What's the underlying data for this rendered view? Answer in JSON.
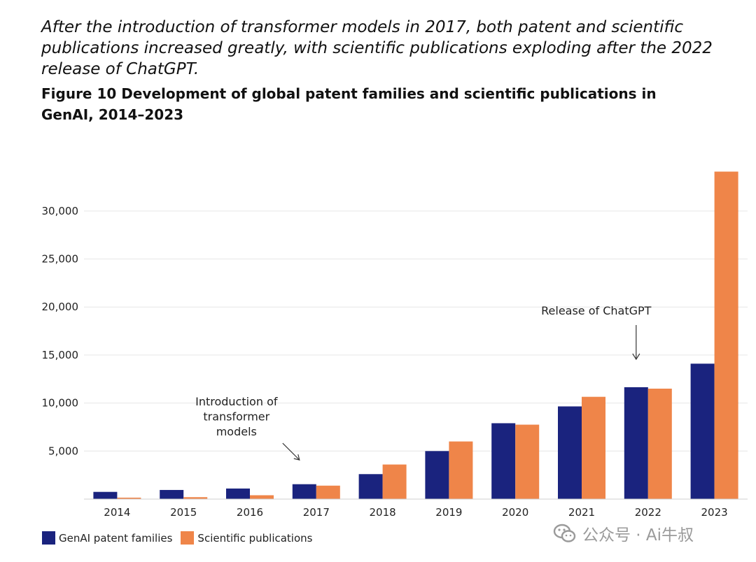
{
  "headline": "After the introduction of transformer models in 2017, both patent and scientific publications increased greatly, with scientific publications exploding after the 2022 release of ChatGPT.",
  "figure_title": "Figure 10 Development of global patent families and scientific publications in GenAI, 2014–2023",
  "watermark": "公众号 · Ai牛叔",
  "colors": {
    "patent": "#1a237e",
    "publications": "#ef8549",
    "grid": "#e6e6e6"
  },
  "chart_data": {
    "type": "bar",
    "title": "Figure 10 Development of global patent families and scientific publications in GenAI, 2014–2023",
    "xlabel": "",
    "ylabel": "",
    "categories": [
      "2014",
      "2015",
      "2016",
      "2017",
      "2018",
      "2019",
      "2020",
      "2021",
      "2022",
      "2023"
    ],
    "series": [
      {
        "name": "GenAI patent families",
        "values": [
          750,
          950,
          1100,
          1550,
          2600,
          5000,
          7900,
          9650,
          11650,
          14100
        ]
      },
      {
        "name": "Scientific publications",
        "values": [
          150,
          200,
          400,
          1400,
          3600,
          6000,
          7750,
          10650,
          11500,
          34100
        ]
      }
    ],
    "ylim": [
      0,
      34500
    ],
    "yticks": [
      5000,
      10000,
      15000,
      20000,
      25000,
      30000
    ],
    "ytick_labels": [
      "5,000",
      "10,000",
      "15,000",
      "20,000",
      "25,000",
      "30,000"
    ],
    "grid": true,
    "legend_position": "bottom-left",
    "annotations": [
      {
        "category": "2017",
        "lines": [
          "Introduction of",
          "transformer",
          "models"
        ]
      },
      {
        "category": "2022",
        "lines": [
          "Release of ChatGPT"
        ]
      }
    ]
  }
}
